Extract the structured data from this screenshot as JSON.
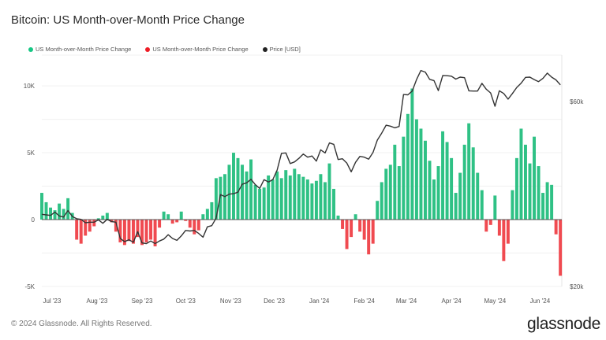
{
  "title": "Bitcoin: US Month-over-Month Price Change",
  "legend": [
    {
      "label": "US Month-over-Month Price Change",
      "color": "#16c784"
    },
    {
      "label": "US Month-over-Month Price Change",
      "color": "#ee1c25"
    },
    {
      "label": "Price [USD]",
      "color": "#222222"
    }
  ],
  "footer": "© 2024 Glassnode. All Rights Reserved.",
  "logo": "glassnode",
  "chart_data": {
    "type": "bar+line",
    "title": "Bitcoin: US Month-over-Month Price Change",
    "x_range": [
      "2023-06-24",
      "2024-06-16"
    ],
    "x_ticks": [
      {
        "date": "2023-07-01",
        "label": "Jul '23"
      },
      {
        "date": "2023-08-01",
        "label": "Aug '23"
      },
      {
        "date": "2023-09-01",
        "label": "Sep '23"
      },
      {
        "date": "2023-10-01",
        "label": "Oct '23"
      },
      {
        "date": "2023-11-01",
        "label": "Nov '23"
      },
      {
        "date": "2023-12-01",
        "label": "Dec '23"
      },
      {
        "date": "2024-01-01",
        "label": "Jan '24"
      },
      {
        "date": "2024-02-01",
        "label": "Feb '24"
      },
      {
        "date": "2024-03-01",
        "label": "Mar '24"
      },
      {
        "date": "2024-04-01",
        "label": "Apr '24"
      },
      {
        "date": "2024-05-01",
        "label": "May '24"
      },
      {
        "date": "2024-06-01",
        "label": "Jun '24"
      }
    ],
    "y_left": {
      "range": [
        -5000,
        12300
      ],
      "ticks": [
        {
          "v": 10000,
          "label": "10K"
        },
        {
          "v": 5000,
          "label": "5K"
        },
        {
          "v": 0,
          "label": "0"
        },
        {
          "v": -5000,
          "label": "-5K"
        }
      ]
    },
    "y_right": {
      "scale": "log",
      "range": [
        20000,
        79000
      ],
      "ticks": [
        {
          "v": 60000,
          "label": "$60k"
        },
        {
          "v": 20000,
          "label": "$20k"
        }
      ]
    },
    "grid": true,
    "legend_position": "top-left",
    "colors": {
      "positive": "#2fc185",
      "negative": "#f04a50",
      "price": "#333333"
    },
    "columns": [
      "date",
      "mom_change",
      "price_usd"
    ],
    "points": [
      [
        "2023-06-24",
        2000,
        30700
      ],
      [
        "2023-06-27",
        1300,
        30600
      ],
      [
        "2023-06-30",
        900,
        30500
      ],
      [
        "2023-07-03",
        700,
        31100
      ],
      [
        "2023-07-06",
        1200,
        30400
      ],
      [
        "2023-07-09",
        800,
        30200
      ],
      [
        "2023-07-12",
        1600,
        31400
      ],
      [
        "2023-07-15",
        500,
        30300
      ],
      [
        "2023-07-18",
        -1500,
        29900
      ],
      [
        "2023-07-21",
        -1800,
        29800
      ],
      [
        "2023-07-24",
        -1200,
        29200
      ],
      [
        "2023-07-27",
        -900,
        29300
      ],
      [
        "2023-07-30",
        -500,
        29300
      ],
      [
        "2023-08-02",
        100,
        29700
      ],
      [
        "2023-08-05",
        300,
        29100
      ],
      [
        "2023-08-08",
        500,
        29800
      ],
      [
        "2023-08-11",
        -200,
        29400
      ],
      [
        "2023-08-14",
        -900,
        29300
      ],
      [
        "2023-08-17",
        -1700,
        26600
      ],
      [
        "2023-08-20",
        -1900,
        26100
      ],
      [
        "2023-08-23",
        -1600,
        26400
      ],
      [
        "2023-08-26",
        -1800,
        26000
      ],
      [
        "2023-08-29",
        -1300,
        27700
      ],
      [
        "2023-09-01",
        -1900,
        25900
      ],
      [
        "2023-09-04",
        -1700,
        25800
      ],
      [
        "2023-09-07",
        -1500,
        26200
      ],
      [
        "2023-09-10",
        -2000,
        25800
      ],
      [
        "2023-09-13",
        -600,
        26200
      ],
      [
        "2023-09-16",
        600,
        26500
      ],
      [
        "2023-09-19",
        400,
        27200
      ],
      [
        "2023-09-22",
        -300,
        26600
      ],
      [
        "2023-09-25",
        -200,
        26300
      ],
      [
        "2023-09-28",
        600,
        27000
      ],
      [
        "2023-10-01",
        -100,
        27900
      ],
      [
        "2023-10-04",
        -600,
        27800
      ],
      [
        "2023-10-07",
        -1100,
        27900
      ],
      [
        "2023-10-10",
        -800,
        27400
      ],
      [
        "2023-10-13",
        400,
        26800
      ],
      [
        "2023-10-16",
        800,
        28500
      ],
      [
        "2023-10-19",
        1300,
        28700
      ],
      [
        "2023-10-22",
        3100,
        30000
      ],
      [
        "2023-10-25",
        3200,
        34500
      ],
      [
        "2023-10-28",
        3400,
        34100
      ],
      [
        "2023-10-31",
        4100,
        34600
      ],
      [
        "2023-11-03",
        5000,
        34700
      ],
      [
        "2023-11-06",
        4600,
        35000
      ],
      [
        "2023-11-09",
        4100,
        36700
      ],
      [
        "2023-11-12",
        3600,
        37000
      ],
      [
        "2023-11-15",
        4500,
        37800
      ],
      [
        "2023-11-18",
        2600,
        36600
      ],
      [
        "2023-11-21",
        2300,
        35800
      ],
      [
        "2023-11-24",
        2400,
        37700
      ],
      [
        "2023-11-27",
        3300,
        37200
      ],
      [
        "2023-11-30",
        3000,
        37700
      ],
      [
        "2023-12-03",
        3600,
        39900
      ],
      [
        "2023-12-06",
        3100,
        44100
      ],
      [
        "2023-12-09",
        3700,
        44200
      ],
      [
        "2023-12-12",
        3300,
        41500
      ],
      [
        "2023-12-15",
        3800,
        41900
      ],
      [
        "2023-12-18",
        3400,
        42800
      ],
      [
        "2023-12-21",
        3200,
        43900
      ],
      [
        "2023-12-24",
        3000,
        43100
      ],
      [
        "2023-12-27",
        2700,
        43400
      ],
      [
        "2023-12-30",
        2900,
        42100
      ],
      [
        "2024-01-02",
        3400,
        45000
      ],
      [
        "2024-01-05",
        2800,
        44200
      ],
      [
        "2024-01-08",
        4200,
        46900
      ],
      [
        "2024-01-11",
        2300,
        46500
      ],
      [
        "2024-01-14",
        300,
        42500
      ],
      [
        "2024-01-17",
        -700,
        42700
      ],
      [
        "2024-01-20",
        -2200,
        41600
      ],
      [
        "2024-01-23",
        -1300,
        39500
      ],
      [
        "2024-01-26",
        400,
        41800
      ],
      [
        "2024-01-29",
        -900,
        43300
      ],
      [
        "2024-02-01",
        -1500,
        43100
      ],
      [
        "2024-02-04",
        -2600,
        42600
      ],
      [
        "2024-02-07",
        -1800,
        44300
      ],
      [
        "2024-02-10",
        1400,
        47700
      ],
      [
        "2024-02-13",
        2800,
        49700
      ],
      [
        "2024-02-16",
        3800,
        52100
      ],
      [
        "2024-02-19",
        4100,
        51800
      ],
      [
        "2024-02-22",
        5600,
        51300
      ],
      [
        "2024-02-25",
        4000,
        51700
      ],
      [
        "2024-02-28",
        6200,
        62500
      ],
      [
        "2024-03-02",
        7900,
        62400
      ],
      [
        "2024-03-05",
        9800,
        63800
      ],
      [
        "2024-03-08",
        7500,
        68300
      ],
      [
        "2024-03-11",
        6800,
        72100
      ],
      [
        "2024-03-14",
        5900,
        71400
      ],
      [
        "2024-03-17",
        4400,
        68400
      ],
      [
        "2024-03-20",
        3000,
        67900
      ],
      [
        "2024-03-23",
        4000,
        64000
      ],
      [
        "2024-03-26",
        6600,
        70000
      ],
      [
        "2024-03-29",
        5800,
        69900
      ],
      [
        "2024-04-01",
        4600,
        69700
      ],
      [
        "2024-04-04",
        2000,
        68500
      ],
      [
        "2024-04-07",
        3500,
        69300
      ],
      [
        "2024-04-10",
        5600,
        69100
      ],
      [
        "2024-04-13",
        7200,
        63900
      ],
      [
        "2024-04-16",
        5400,
        63800
      ],
      [
        "2024-04-19",
        3500,
        63800
      ],
      [
        "2024-04-22",
        2200,
        66800
      ],
      [
        "2024-04-25",
        -900,
        64500
      ],
      [
        "2024-04-28",
        -400,
        63100
      ],
      [
        "2024-05-01",
        1800,
        58300
      ],
      [
        "2024-05-04",
        -1200,
        63900
      ],
      [
        "2024-05-07",
        -3100,
        62900
      ],
      [
        "2024-05-10",
        -1800,
        60800
      ],
      [
        "2024-05-13",
        2200,
        62900
      ],
      [
        "2024-05-16",
        4600,
        65200
      ],
      [
        "2024-05-19",
        6800,
        66900
      ],
      [
        "2024-05-22",
        5600,
        69200
      ],
      [
        "2024-05-25",
        4200,
        69300
      ],
      [
        "2024-05-28",
        6200,
        68300
      ],
      [
        "2024-05-31",
        4000,
        67500
      ],
      [
        "2024-06-03",
        2000,
        68800
      ],
      [
        "2024-06-06",
        2800,
        71000
      ],
      [
        "2024-06-09",
        2600,
        69300
      ],
      [
        "2024-06-12",
        -1100,
        68200
      ],
      [
        "2024-06-15",
        -4200,
        66200
      ]
    ]
  }
}
